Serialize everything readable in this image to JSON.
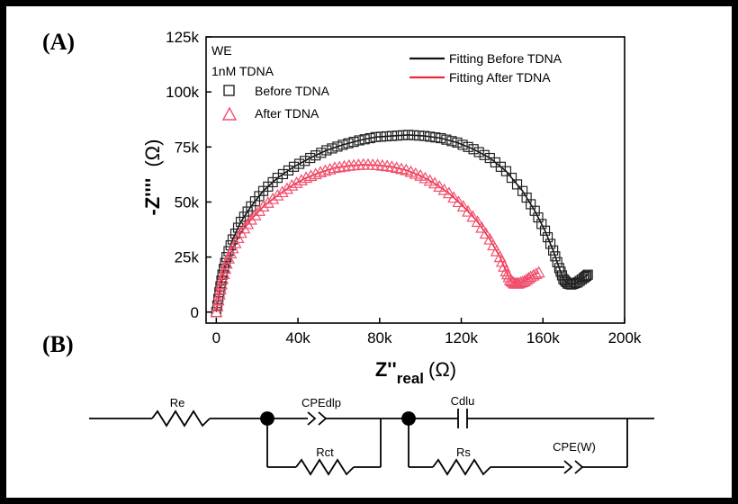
{
  "panels": {
    "a_label": "(A)",
    "b_label": "(B)"
  },
  "chart_data": {
    "type": "scatter",
    "title": "",
    "xlabel": "Z''",
    "xlabel_sub": "real",
    "xlabel_unit": "(Ω)",
    "ylabel": "-Z''''",
    "ylabel_unit": "(Ω)",
    "xlim": [
      -5000,
      200000
    ],
    "ylim": [
      -5000,
      125000
    ],
    "x_ticks": [
      0,
      40000,
      80000,
      120000,
      160000,
      200000
    ],
    "x_tick_labels": [
      "0",
      "40k",
      "80k",
      "120k",
      "160k",
      "200k"
    ],
    "y_ticks": [
      0,
      25000,
      50000,
      75000,
      100000,
      125000
    ],
    "y_tick_labels": [
      "0",
      "25k",
      "50k",
      "75k",
      "100k",
      "125k"
    ],
    "grid": false,
    "annotations": {
      "line1": "WE",
      "line2": "1nM TDNA"
    },
    "series": [
      {
        "name": "Before TDNA",
        "marker": "square",
        "color": "#222222",
        "x": [
          0,
          1500,
          3000,
          5000,
          8000,
          12000,
          17000,
          23000,
          30000,
          38000,
          46000,
          54000,
          62000,
          70000,
          78000,
          86000,
          94000,
          102000,
          110000,
          118000,
          126000,
          134000,
          142000,
          150000,
          156000,
          161000,
          165000,
          168000,
          170000,
          172000,
          174000,
          177000,
          180000,
          182000
        ],
        "y": [
          0,
          9000,
          17000,
          25000,
          33000,
          41000,
          48000,
          55000,
          61000,
          66000,
          70000,
          73500,
          76000,
          78000,
          79500,
          80000,
          80500,
          80000,
          79000,
          77000,
          74000,
          70000,
          64000,
          55000,
          46000,
          37000,
          28000,
          20000,
          15000,
          13000,
          12500,
          13500,
          15500,
          17000
        ]
      },
      {
        "name": "After TDNA",
        "marker": "triangle",
        "color": "#f0506e",
        "x": [
          0,
          1500,
          3000,
          5000,
          8000,
          12000,
          17000,
          23000,
          30000,
          37000,
          44000,
          51000,
          58000,
          65000,
          72000,
          79000,
          86000,
          93000,
          100000,
          107000,
          114000,
          121000,
          128000,
          134000,
          139000,
          142000,
          144000,
          146000,
          148000,
          151000,
          154000,
          158000
        ],
        "y": [
          0,
          8000,
          15000,
          22000,
          29000,
          36000,
          42000,
          48000,
          53000,
          57500,
          61000,
          63500,
          65500,
          66500,
          67000,
          66800,
          66000,
          64500,
          62000,
          58500,
          54000,
          48000,
          41000,
          33000,
          25000,
          18500,
          14500,
          13000,
          13000,
          14000,
          16000,
          18000
        ]
      }
    ],
    "fits": [
      {
        "name": "Fitting Before TDNA",
        "color": "#111111"
      },
      {
        "name": "Fitting After TDNA",
        "color": "#e8283c"
      }
    ],
    "legend_placement": "top-right"
  },
  "circuit": {
    "re": "Re",
    "cpedlp": "CPEdlp",
    "rct": "Rct",
    "cdlu": "Cdlu",
    "rs": "Rs",
    "cpew": "CPE(W)"
  }
}
